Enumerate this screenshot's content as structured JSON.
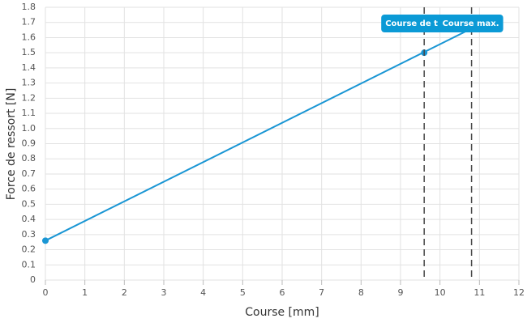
{
  "chart_data": {
    "type": "line",
    "xlabel": "Course [mm]",
    "ylabel": "Force de ressort [N]",
    "series": [
      {
        "color": "#1a96d4",
        "x": [
          0,
          10.8
        ],
        "values": [
          0.26,
          1.66
        ]
      }
    ],
    "points": {
      "color": "#1a96d4",
      "x": [
        0,
        9.6
      ],
      "values": [
        0.26,
        1.5
      ]
    },
    "markers": [
      {
        "x": 9.6,
        "label": "Course de t"
      },
      {
        "x": 10.8,
        "label": "Course max."
      }
    ],
    "marker_color": "#0b9ad6",
    "xlim": [
      0,
      12
    ],
    "xticks": [
      0,
      1,
      2,
      3,
      4,
      5,
      6,
      7,
      8,
      9,
      10,
      11,
      12
    ],
    "ylim": [
      0,
      1.8
    ],
    "yticks": [
      0,
      0.1,
      0.2,
      0.3,
      0.4,
      0.5,
      0.6,
      0.7,
      0.8,
      0.9,
      {
        "value": 1,
        "label": "1.0"
      },
      1.1,
      1.2,
      1.3,
      1.4,
      1.5,
      1.6,
      1.7,
      1.8
    ],
    "grid": true
  }
}
